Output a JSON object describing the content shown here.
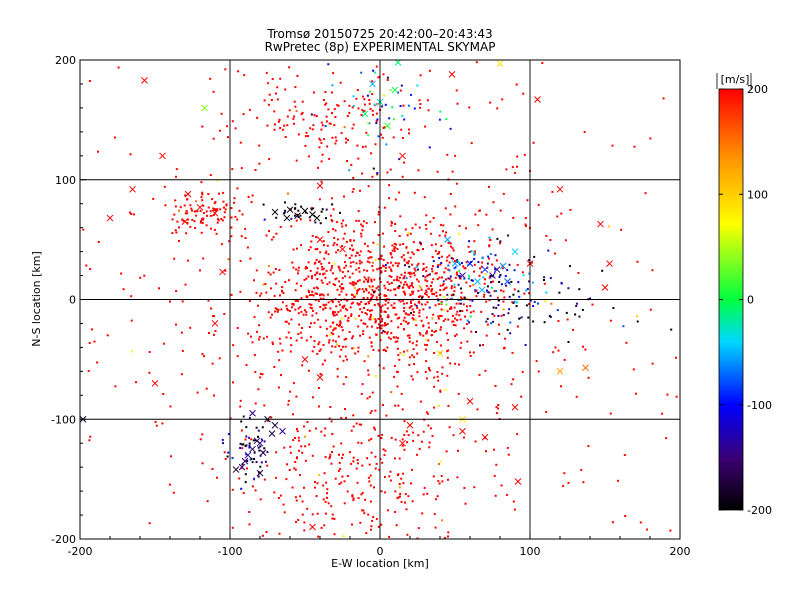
{
  "chart_data": {
    "type": "scatter",
    "title": "Tromsø 20150725 20:42:00–20:43:43",
    "subtitle": "RwPretec (8p) EXPERIMENTAL SKYMAP",
    "xlabel": "E-W location [km]",
    "ylabel": "N-S location [km]",
    "xlim": [
      -200,
      200
    ],
    "ylim": [
      -200,
      200
    ],
    "xticks": [
      "-200",
      "-100",
      "0",
      "100",
      "200"
    ],
    "yticks": [
      "-200",
      "-100",
      "0",
      "100",
      "200"
    ],
    "grid": true,
    "colorbar": {
      "label": "[m/s]",
      "range": [
        -200,
        200
      ],
      "ticks": [
        "200",
        "100",
        "0",
        "-100",
        "-200"
      ],
      "colormap": "rainbow (black-blue-cyan-green-yellow-red)"
    },
    "marker_types": [
      "dot",
      "x"
    ],
    "clusters": [
      {
        "region": "central",
        "cx": 0,
        "cy": 5,
        "sx": 38,
        "sy": 30,
        "count": 900,
        "velocity": 200
      },
      {
        "region": "diffuse field",
        "cx": -5,
        "cy": 0,
        "sx": 95,
        "sy": 110,
        "count": 700,
        "velocity": 200
      },
      {
        "region": "north-west band",
        "cx": -35,
        "cy": 150,
        "sx": 28,
        "sy": 20,
        "count": 120,
        "velocity": 200
      },
      {
        "region": "west band",
        "cx": -120,
        "cy": 75,
        "sx": 15,
        "sy": 10,
        "count": 90,
        "velocity": 200
      },
      {
        "region": "south",
        "cx": -20,
        "cy": -150,
        "sx": 40,
        "sy": 30,
        "count": 260,
        "velocity": 200
      },
      {
        "region": "north",
        "cx": 0,
        "cy": 155,
        "sx": 18,
        "sy": 22,
        "count": 45,
        "velocity": -80
      },
      {
        "region": "east",
        "cx": 60,
        "cy": 15,
        "sx": 25,
        "sy": 18,
        "count": 140,
        "velocity": -120
      },
      {
        "region": "east tail",
        "cx": 120,
        "cy": -5,
        "sx": 30,
        "sy": 12,
        "count": 40,
        "velocity": -190
      },
      {
        "region": "north-west cluster",
        "cx": -55,
        "cy": 72,
        "sx": 13,
        "sy": 4,
        "count": 30,
        "velocity": -200
      },
      {
        "region": "south-west cluster",
        "cx": -87,
        "cy": -125,
        "sx": 7,
        "sy": 13,
        "count": 55,
        "velocity": -170
      }
    ],
    "crosses": [
      [
        -157,
        183
      ],
      [
        -117,
        160
      ],
      [
        -145,
        120
      ],
      [
        -165,
        92
      ],
      [
        -128,
        88
      ],
      [
        -120,
        77
      ],
      [
        -110,
        72
      ],
      [
        -130,
        65
      ],
      [
        -180,
        68
      ],
      [
        -150,
        -70
      ],
      [
        -198,
        -100
      ],
      [
        -105,
        23
      ],
      [
        -110,
        -20
      ],
      [
        -62,
        68
      ],
      [
        -60,
        75
      ],
      [
        -55,
        70
      ],
      [
        -45,
        71
      ],
      [
        -42,
        68
      ],
      [
        -70,
        73
      ],
      [
        -50,
        74
      ],
      [
        -80,
        -120
      ],
      [
        -85,
        -125
      ],
      [
        -88,
        -130
      ],
      [
        -90,
        -135
      ],
      [
        -78,
        -128
      ],
      [
        -82,
        -118
      ],
      [
        -72,
        -112
      ],
      [
        -92,
        -140
      ],
      [
        -96,
        -142
      ],
      [
        -80,
        -145
      ],
      [
        -70,
        -105
      ],
      [
        -65,
        -110
      ],
      [
        -85,
        -95
      ],
      [
        -75,
        -100
      ],
      [
        -5,
        180
      ],
      [
        10,
        175
      ],
      [
        0,
        165
      ],
      [
        5,
        145
      ],
      [
        15,
        120
      ],
      [
        -10,
        155
      ],
      [
        80,
        197
      ],
      [
        12,
        198
      ],
      [
        48,
        188
      ],
      [
        105,
        167
      ],
      [
        120,
        92
      ],
      [
        147,
        63
      ],
      [
        153,
        30
      ],
      [
        90,
        40
      ],
      [
        100,
        30
      ],
      [
        85,
        15
      ],
      [
        75,
        20
      ],
      [
        70,
        25
      ],
      [
        60,
        30
      ],
      [
        55,
        20
      ],
      [
        65,
        15
      ],
      [
        68,
        8
      ],
      [
        78,
        25
      ],
      [
        82,
        28
      ],
      [
        45,
        50
      ],
      [
        50,
        30
      ],
      [
        40,
        -45
      ],
      [
        -50,
        -50
      ],
      [
        -40,
        -65
      ],
      [
        15,
        -120
      ],
      [
        20,
        -105
      ],
      [
        55,
        -110
      ],
      [
        70,
        -115
      ],
      [
        92,
        -152
      ],
      [
        137,
        -57
      ],
      [
        150,
        10
      ],
      [
        -40,
        50
      ],
      [
        -25,
        42
      ],
      [
        -40,
        95
      ],
      [
        55,
        -100
      ],
      [
        60,
        -85
      ],
      [
        120,
        -60
      ],
      [
        -45,
        -190
      ],
      [
        90,
        -90
      ]
    ]
  }
}
